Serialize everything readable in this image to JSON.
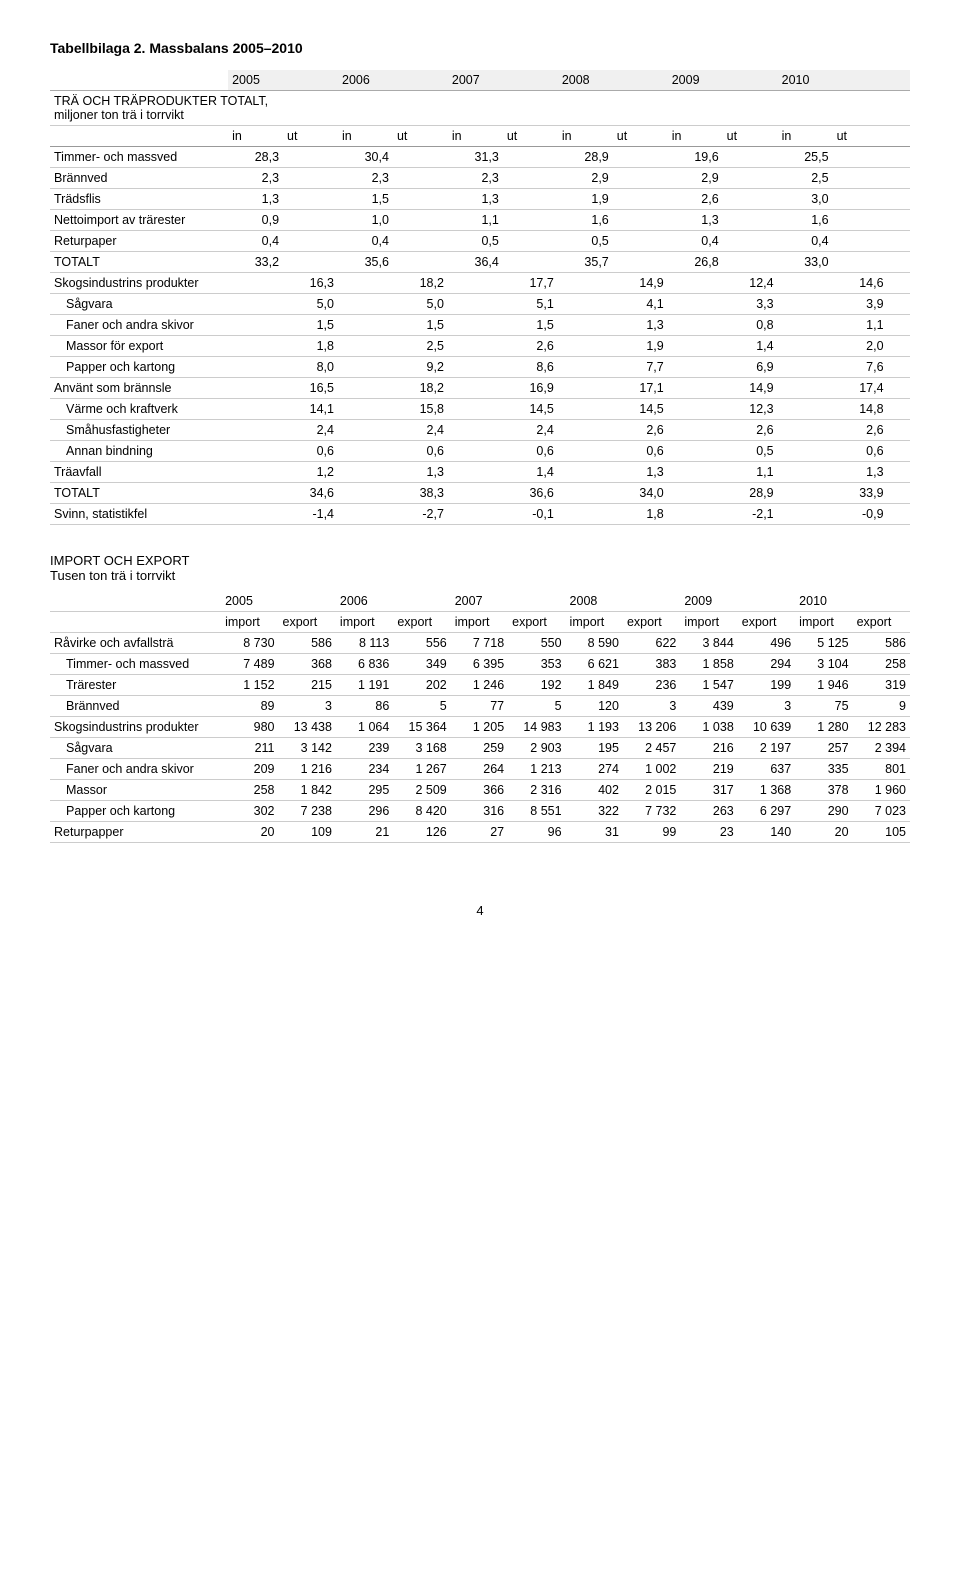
{
  "title": "Tabellbilaga 2. Massbalans 2005–2010",
  "years": [
    "2005",
    "2006",
    "2007",
    "2008",
    "2009",
    "2010"
  ],
  "inout": [
    "in",
    "ut",
    "in",
    "ut",
    "in",
    "ut",
    "in",
    "ut",
    "in",
    "ut",
    "in",
    "ut"
  ],
  "section1_header": "TRÄ OCH TRÄPRODUKTER TOTALT,\nmiljoner ton trä i torrvikt",
  "table1_rows": [
    {
      "label": "Timmer- och massved",
      "indent": 0,
      "vals": [
        "28,3",
        "",
        "30,4",
        "",
        "31,3",
        "",
        "28,9",
        "",
        "19,6",
        "",
        "25,5",
        ""
      ]
    },
    {
      "label": "Brännved",
      "indent": 0,
      "vals": [
        "2,3",
        "",
        "2,3",
        "",
        "2,3",
        "",
        "2,9",
        "",
        "2,9",
        "",
        "2,5",
        ""
      ]
    },
    {
      "label": "Trädsflis",
      "indent": 0,
      "vals": [
        "1,3",
        "",
        "1,5",
        "",
        "1,3",
        "",
        "1,9",
        "",
        "2,6",
        "",
        "3,0",
        ""
      ]
    },
    {
      "label": "Nettoimport av trärester",
      "indent": 0,
      "vals": [
        "0,9",
        "",
        "1,0",
        "",
        "1,1",
        "",
        "1,6",
        "",
        "1,3",
        "",
        "1,6",
        ""
      ]
    },
    {
      "label": "Returpaper",
      "indent": 0,
      "vals": [
        "0,4",
        "",
        "0,4",
        "",
        "0,5",
        "",
        "0,5",
        "",
        "0,4",
        "",
        "0,4",
        ""
      ]
    },
    {
      "label": "TOTALT",
      "indent": 0,
      "vals": [
        "33,2",
        "",
        "35,6",
        "",
        "36,4",
        "",
        "35,7",
        "",
        "26,8",
        "",
        "33,0",
        ""
      ]
    },
    {
      "label": "Skogsindustrins produkter",
      "indent": 0,
      "vals": [
        "",
        "16,3",
        "",
        "18,2",
        "",
        "17,7",
        "",
        "14,9",
        "",
        "12,4",
        "",
        "14,6"
      ]
    },
    {
      "label": "Sågvara",
      "indent": 1,
      "vals": [
        "",
        "5,0",
        "",
        "5,0",
        "",
        "5,1",
        "",
        "4,1",
        "",
        "3,3",
        "",
        "3,9"
      ]
    },
    {
      "label": "Faner och andra skivor",
      "indent": 1,
      "vals": [
        "",
        "1,5",
        "",
        "1,5",
        "",
        "1,5",
        "",
        "1,3",
        "",
        "0,8",
        "",
        "1,1"
      ]
    },
    {
      "label": "Massor för export",
      "indent": 1,
      "vals": [
        "",
        "1,8",
        "",
        "2,5",
        "",
        "2,6",
        "",
        "1,9",
        "",
        "1,4",
        "",
        "2,0"
      ]
    },
    {
      "label": "Papper och kartong",
      "indent": 1,
      "vals": [
        "",
        "8,0",
        "",
        "9,2",
        "",
        "8,6",
        "",
        "7,7",
        "",
        "6,9",
        "",
        "7,6"
      ]
    },
    {
      "label": "Använt som brännsle",
      "indent": 0,
      "vals": [
        "",
        "16,5",
        "",
        "18,2",
        "",
        "16,9",
        "",
        "17,1",
        "",
        "14,9",
        "",
        "17,4"
      ]
    },
    {
      "label": "Värme och kraftverk",
      "indent": 1,
      "vals": [
        "",
        "14,1",
        "",
        "15,8",
        "",
        "14,5",
        "",
        "14,5",
        "",
        "12,3",
        "",
        "14,8"
      ]
    },
    {
      "label": "Småhusfastigheter",
      "indent": 1,
      "vals": [
        "",
        "2,4",
        "",
        "2,4",
        "",
        "2,4",
        "",
        "2,6",
        "",
        "2,6",
        "",
        "2,6"
      ]
    },
    {
      "label": "Annan bindning",
      "indent": 1,
      "vals": [
        "",
        "0,6",
        "",
        "0,6",
        "",
        "0,6",
        "",
        "0,6",
        "",
        "0,5",
        "",
        "0,6"
      ]
    },
    {
      "label": "Träavfall",
      "indent": 0,
      "vals": [
        "",
        "1,2",
        "",
        "1,3",
        "",
        "1,4",
        "",
        "1,3",
        "",
        "1,1",
        "",
        "1,3"
      ]
    },
    {
      "label": "TOTALT",
      "indent": 0,
      "vals": [
        "",
        "34,6",
        "",
        "38,3",
        "",
        "36,6",
        "",
        "34,0",
        "",
        "28,9",
        "",
        "33,9"
      ]
    },
    {
      "label": "Svinn, statistikfel",
      "indent": 0,
      "vals": [
        "",
        "-1,4",
        "",
        "-2,7",
        "",
        "-0,1",
        "",
        "1,8",
        "",
        "-2,1",
        "",
        "-0,9"
      ]
    }
  ],
  "section2_header": "IMPORT OCH EXPORT\nTusen ton trä i torrvikt",
  "ie_labels": [
    "import",
    "export",
    "import",
    "export",
    "import",
    "export",
    "import",
    "export",
    "import",
    "export",
    "import",
    "export"
  ],
  "table2_rows": [
    {
      "label": "Råvirke och avfallsträ",
      "indent": 0,
      "vals": [
        "8 730",
        "586",
        "8 113",
        "556",
        "7 718",
        "550",
        "8 590",
        "622",
        "3 844",
        "496",
        "5 125",
        "586"
      ]
    },
    {
      "label": "Timmer- och massved",
      "indent": 1,
      "vals": [
        "7 489",
        "368",
        "6 836",
        "349",
        "6 395",
        "353",
        "6 621",
        "383",
        "1 858",
        "294",
        "3 104",
        "258"
      ]
    },
    {
      "label": "Trärester",
      "indent": 1,
      "vals": [
        "1 152",
        "215",
        "1 191",
        "202",
        "1 246",
        "192",
        "1 849",
        "236",
        "1 547",
        "199",
        "1 946",
        "319"
      ]
    },
    {
      "label": "Brännved",
      "indent": 1,
      "vals": [
        "89",
        "3",
        "86",
        "5",
        "77",
        "5",
        "120",
        "3",
        "439",
        "3",
        "75",
        "9"
      ]
    },
    {
      "label": "Skogsindustrins produkter",
      "indent": 0,
      "vals": [
        "980",
        "13 438",
        "1 064",
        "15 364",
        "1 205",
        "14 983",
        "1 193",
        "13 206",
        "1 038",
        "10 639",
        "1 280",
        "12 283"
      ]
    },
    {
      "label": "Sågvara",
      "indent": 1,
      "vals": [
        "211",
        "3 142",
        "239",
        "3 168",
        "259",
        "2 903",
        "195",
        "2 457",
        "216",
        "2 197",
        "257",
        "2 394"
      ]
    },
    {
      "label": "Faner och andra skivor",
      "indent": 1,
      "vals": [
        "209",
        "1 216",
        "234",
        "1 267",
        "264",
        "1 213",
        "274",
        "1 002",
        "219",
        "637",
        "335",
        "801"
      ]
    },
    {
      "label": "Massor",
      "indent": 1,
      "vals": [
        "258",
        "1 842",
        "295",
        "2 509",
        "366",
        "2 316",
        "402",
        "2 015",
        "317",
        "1 368",
        "378",
        "1 960"
      ]
    },
    {
      "label": "Papper och kartong",
      "indent": 1,
      "vals": [
        "302",
        "7 238",
        "296",
        "8 420",
        "316",
        "8 551",
        "322",
        "7 732",
        "263",
        "6 297",
        "290",
        "7 023"
      ]
    },
    {
      "label": "Returpapper",
      "indent": 0,
      "vals": [
        "20",
        "109",
        "21",
        "126",
        "27",
        "96",
        "31",
        "99",
        "23",
        "140",
        "20",
        "105"
      ]
    }
  ],
  "page_number": "4"
}
